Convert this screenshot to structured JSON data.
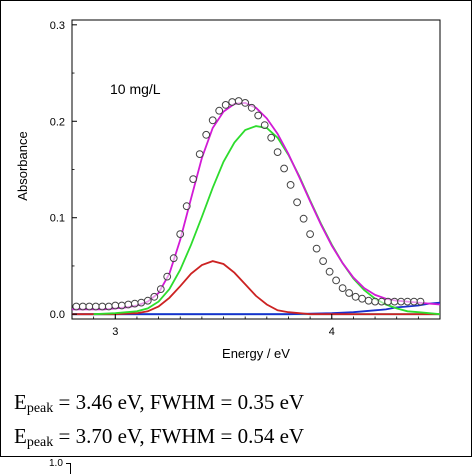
{
  "chart_data": {
    "type": "line",
    "title": "",
    "annotation": "10 mg/L",
    "xlabel": "Energy / eV",
    "ylabel": "Absorbance",
    "xlim": [
      2.8,
      4.5
    ],
    "ylim": [
      -0.005,
      0.305
    ],
    "xticks": [
      3,
      4
    ],
    "xtick_labels": [
      "3",
      "4"
    ],
    "yticks": [
      0.0,
      0.1,
      0.2,
      0.3
    ],
    "ytick_labels": [
      "0.0",
      "0.1",
      "0.2",
      "0.3"
    ],
    "grid": false,
    "legend": "none",
    "series": [
      {
        "kind": "scatter",
        "marker": "open-circle",
        "color": "#444444",
        "x": [
          2.82,
          2.85,
          2.88,
          2.91,
          2.94,
          2.97,
          3.0,
          3.03,
          3.06,
          3.09,
          3.12,
          3.15,
          3.18,
          3.21,
          3.24,
          3.27,
          3.3,
          3.33,
          3.36,
          3.39,
          3.42,
          3.45,
          3.48,
          3.51,
          3.54,
          3.57,
          3.6,
          3.63,
          3.66,
          3.69,
          3.72,
          3.75,
          3.78,
          3.81,
          3.84,
          3.87,
          3.9,
          3.93,
          3.96,
          3.99,
          4.02,
          4.05,
          4.08,
          4.11,
          4.14,
          4.17,
          4.2,
          4.23,
          4.26,
          4.29,
          4.32,
          4.35,
          4.38,
          4.41
        ],
        "y": [
          0.008,
          0.008,
          0.008,
          0.008,
          0.008,
          0.008,
          0.009,
          0.009,
          0.01,
          0.011,
          0.012,
          0.014,
          0.018,
          0.026,
          0.039,
          0.058,
          0.083,
          0.112,
          0.14,
          0.166,
          0.186,
          0.201,
          0.211,
          0.217,
          0.22,
          0.221,
          0.219,
          0.214,
          0.206,
          0.196,
          0.183,
          0.168,
          0.151,
          0.134,
          0.116,
          0.099,
          0.083,
          0.068,
          0.055,
          0.044,
          0.035,
          0.027,
          0.022,
          0.018,
          0.016,
          0.014,
          0.013,
          0.013,
          0.013,
          0.013,
          0.013,
          0.013,
          0.013,
          0.013
        ]
      },
      {
        "kind": "line",
        "color": "#d21ad6",
        "x": [
          2.8,
          2.85,
          2.9,
          2.95,
          3.0,
          3.05,
          3.1,
          3.15,
          3.2,
          3.25,
          3.3,
          3.35,
          3.4,
          3.45,
          3.5,
          3.55,
          3.6,
          3.65,
          3.7,
          3.75,
          3.8,
          3.85,
          3.9,
          3.95,
          4.0,
          4.05,
          4.1,
          4.15,
          4.2,
          4.25,
          4.3,
          4.35,
          4.4,
          4.45,
          4.5
        ],
        "y": [
          0.005,
          0.005,
          0.005,
          0.005,
          0.006,
          0.007,
          0.009,
          0.013,
          0.022,
          0.042,
          0.077,
          0.12,
          0.162,
          0.193,
          0.21,
          0.218,
          0.219,
          0.214,
          0.203,
          0.187,
          0.166,
          0.142,
          0.117,
          0.093,
          0.071,
          0.053,
          0.038,
          0.027,
          0.02,
          0.016,
          0.014,
          0.013,
          0.012,
          0.011,
          0.01
        ]
      },
      {
        "kind": "line",
        "color": "#2ddc2d",
        "x": [
          2.9,
          3.0,
          3.1,
          3.15,
          3.2,
          3.25,
          3.3,
          3.35,
          3.4,
          3.45,
          3.5,
          3.55,
          3.6,
          3.65,
          3.7,
          3.75,
          3.8,
          3.85,
          3.9,
          3.95,
          4.0,
          4.05,
          4.1,
          4.15,
          4.2,
          4.25,
          4.3,
          4.35,
          4.4,
          4.45,
          4.5
        ],
        "y": [
          0.0,
          0.001,
          0.003,
          0.006,
          0.013,
          0.026,
          0.046,
          0.072,
          0.101,
          0.131,
          0.158,
          0.178,
          0.191,
          0.195,
          0.193,
          0.183,
          0.165,
          0.143,
          0.118,
          0.094,
          0.072,
          0.053,
          0.037,
          0.025,
          0.016,
          0.01,
          0.006,
          0.003,
          0.002,
          0.001,
          0.0
        ]
      },
      {
        "kind": "line",
        "color": "#cc2222",
        "x": [
          2.8,
          3.0,
          3.1,
          3.15,
          3.2,
          3.25,
          3.3,
          3.35,
          3.4,
          3.45,
          3.5,
          3.55,
          3.6,
          3.65,
          3.7,
          3.75,
          3.8,
          3.9,
          4.0,
          4.2,
          4.5
        ],
        "y": [
          0.0,
          0.0,
          0.001,
          0.003,
          0.008,
          0.017,
          0.029,
          0.042,
          0.051,
          0.055,
          0.052,
          0.043,
          0.031,
          0.019,
          0.01,
          0.004,
          0.002,
          0.0,
          0.0,
          0.0,
          0.0
        ]
      },
      {
        "kind": "line",
        "color": "#1a2fcc",
        "x": [
          2.8,
          3.5,
          3.8,
          3.9,
          4.0,
          4.1,
          4.2,
          4.25,
          4.3,
          4.35,
          4.4,
          4.45,
          4.5
        ],
        "y": [
          0.0,
          0.0,
          0.0,
          0.0005,
          0.001,
          0.002,
          0.004,
          0.005,
          0.007,
          0.008,
          0.009,
          0.011,
          0.012
        ]
      },
      {
        "kind": "line",
        "color": "#22d8d8",
        "x": [
          2.8,
          4.5
        ],
        "y": [
          0.0,
          0.0
        ]
      }
    ]
  },
  "equations": [
    {
      "lead": "E",
      "sub": "peak",
      "rest": " = 3.46 eV, FWHM = 0.35 eV"
    },
    {
      "lead": "E",
      "sub": "peak",
      "rest": " = 3.70 eV, FWHM = 0.54 eV"
    }
  ],
  "next_chart": {
    "tick_label": "1.0"
  }
}
